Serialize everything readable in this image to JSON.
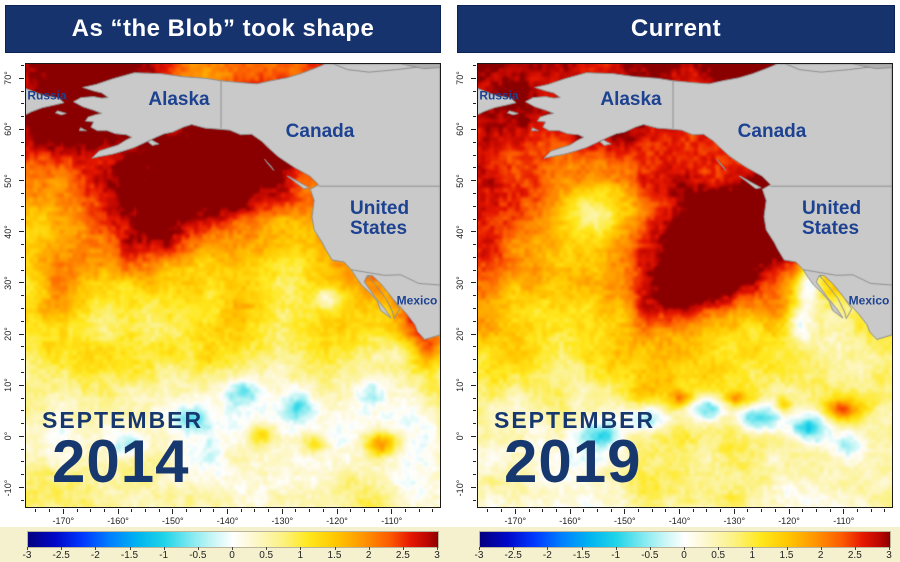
{
  "panels": [
    {
      "title": "As “the Blob” took shape",
      "month": "SEPTEMBER",
      "year": "2014"
    },
    {
      "title": "Current",
      "month": "SEPTEMBER",
      "year": "2019"
    }
  ],
  "region_labels": {
    "russia": "Russia",
    "alaska": "Alaska",
    "canada": "Canada",
    "united_states": "United States",
    "mexico": "Mexico"
  },
  "chart_data": {
    "type": "heatmap",
    "subtype": "geographic-sea-surface-temperature-anomaly",
    "panels": [
      {
        "title": "As “the Blob” took shape",
        "date_label": "SEPTEMBER 2014",
        "description": "Warm anomaly (+2 to +3) across Gulf of Alaska and Bering Sea; warm band along Baja/Mexico coast; near-neutral tropics with small cool eddies"
      },
      {
        "title": "Current",
        "date_label": "SEPTEMBER 2019",
        "description": "Large +2.5 to +3 anomaly blob offshore of US West Coast and across NE Pacific; cool tropical instability waves (-1 to -2) near equator"
      }
    ],
    "region_labels": [
      "Russia",
      "Alaska",
      "Canada",
      "United States",
      "Mexico"
    ],
    "x_axis": {
      "tick_labels": [
        "-170°",
        "-160°",
        "-150°",
        "-140°",
        "-130°",
        "-120°",
        "-110°"
      ],
      "ticks_deg": [
        -170,
        -160,
        -150,
        -140,
        -130,
        -120,
        -110
      ],
      "minor_step_deg": 2.5
    },
    "y_axis": {
      "tick_labels": [
        "70°",
        "60°",
        "50°",
        "40°",
        "30°",
        "20°",
        "10°",
        "0°",
        "-10°"
      ],
      "ticks_deg": [
        70,
        60,
        50,
        40,
        30,
        20,
        10,
        0,
        -10
      ],
      "minor_step_deg": 2.5
    },
    "colorbar": {
      "min": -3,
      "max": 3,
      "tick_labels": [
        "-3",
        "-2.5",
        "-2",
        "-1.5",
        "-1",
        "-0.5",
        "0",
        "0.5",
        "1",
        "1.5",
        "2",
        "2.5",
        "3"
      ],
      "position": "bottom"
    },
    "grid": false
  },
  "map_render": {
    "land_color": "#c9c9c9",
    "land_border": "#8f8f8f",
    "border_color": "#8f8f8f",
    "title_bg": "#16336e",
    "label_color": "#1c4291",
    "date_color": "#17386f",
    "footer_bg": "#f5f1cf",
    "colormap": [
      [
        -3.0,
        "#05007f"
      ],
      [
        -2.6,
        "#0008c8"
      ],
      [
        -2.2,
        "#0038ff"
      ],
      [
        -1.8,
        "#0080ff"
      ],
      [
        -1.4,
        "#00b4f0"
      ],
      [
        -1.0,
        "#20d4e8"
      ],
      [
        -0.6,
        "#84eaf0"
      ],
      [
        -0.3,
        "#c8f6f6"
      ],
      [
        0.0,
        "#ffffff"
      ],
      [
        0.3,
        "#fdf8cf"
      ],
      [
        0.7,
        "#fcf287"
      ],
      [
        1.1,
        "#ffe81e"
      ],
      [
        1.5,
        "#ffc800"
      ],
      [
        1.9,
        "#ff9600"
      ],
      [
        2.3,
        "#fc5a00"
      ],
      [
        2.6,
        "#e61800"
      ],
      [
        2.85,
        "#bc0600"
      ],
      [
        3.0,
        "#8a0000"
      ]
    ],
    "fields": [
      {
        "seed": 20140901,
        "base": [
          [
            0,
            2.75
          ],
          [
            0.08,
            2.55
          ],
          [
            0.18,
            2.15
          ],
          [
            0.3,
            1.95
          ],
          [
            0.42,
            1.6
          ],
          [
            0.52,
            1.25
          ],
          [
            0.62,
            0.95
          ],
          [
            0.72,
            0.7
          ],
          [
            0.82,
            0.5
          ],
          [
            1,
            0.42
          ]
        ],
        "blobs": [
          [
            0.42,
            0.3,
            1.5,
            0.2,
            0.13
          ],
          [
            0.3,
            0.4,
            0.7,
            0.1,
            0.08
          ],
          [
            0.12,
            0.1,
            1.1,
            0.15,
            0.09
          ],
          [
            0.55,
            0.17,
            0.8,
            0.12,
            0.07
          ],
          [
            0.93,
            0.5,
            1.5,
            0.06,
            0.08
          ],
          [
            0.97,
            0.62,
            1.4,
            0.05,
            0.09
          ],
          [
            0.85,
            0.45,
            1.0,
            0.06,
            0.05
          ],
          [
            0.07,
            0.5,
            0.6,
            0.05,
            0.1
          ],
          [
            0.73,
            0.53,
            -1.1,
            0.035,
            0.028
          ],
          [
            0.52,
            0.74,
            -1.0,
            0.05,
            0.032
          ],
          [
            0.4,
            0.8,
            -0.9,
            0.05,
            0.03
          ],
          [
            0.66,
            0.78,
            -0.9,
            0.04,
            0.03
          ],
          [
            0.25,
            0.86,
            -0.8,
            0.05,
            0.03
          ],
          [
            0.84,
            0.74,
            -0.75,
            0.04,
            0.03
          ],
          [
            0.86,
            0.86,
            1.6,
            0.045,
            0.03
          ],
          [
            0.7,
            0.86,
            1.1,
            0.035,
            0.025
          ],
          [
            0.57,
            0.84,
            1.0,
            0.03,
            0.025
          ]
        ]
      },
      {
        "seed": 20190901,
        "base": [
          [
            0,
            2.8
          ],
          [
            0.08,
            2.6
          ],
          [
            0.2,
            2.3
          ],
          [
            0.3,
            2.15
          ],
          [
            0.42,
            1.95
          ],
          [
            0.52,
            1.45
          ],
          [
            0.62,
            1.0
          ],
          [
            0.72,
            0.8
          ],
          [
            0.82,
            0.6
          ],
          [
            1,
            0.5
          ]
        ],
        "blobs": [
          [
            0.6,
            0.42,
            1.9,
            0.19,
            0.13
          ],
          [
            0.7,
            0.32,
            1.3,
            0.11,
            0.08
          ],
          [
            0.5,
            0.52,
            1.0,
            0.12,
            0.07
          ],
          [
            0.25,
            0.14,
            1.0,
            0.15,
            0.08
          ],
          [
            0.92,
            0.4,
            0.9,
            0.05,
            0.05
          ],
          [
            0.3,
            0.33,
            -1.3,
            0.11,
            0.065
          ],
          [
            0.2,
            0.42,
            -0.6,
            0.09,
            0.05
          ],
          [
            0.8,
            0.5,
            -1.7,
            0.03,
            0.055
          ],
          [
            0.78,
            0.59,
            -1.2,
            0.028,
            0.04
          ],
          [
            0.42,
            0.8,
            -1.8,
            0.06,
            0.035
          ],
          [
            0.55,
            0.78,
            -1.9,
            0.05,
            0.03
          ],
          [
            0.67,
            0.8,
            -1.7,
            0.05,
            0.03
          ],
          [
            0.3,
            0.84,
            -1.3,
            0.05,
            0.03
          ],
          [
            0.8,
            0.82,
            -1.6,
            0.05,
            0.035
          ],
          [
            0.9,
            0.86,
            -1.0,
            0.04,
            0.03
          ],
          [
            0.49,
            0.755,
            1.0,
            0.025,
            0.018
          ],
          [
            0.62,
            0.755,
            1.1,
            0.025,
            0.018
          ],
          [
            0.88,
            0.78,
            1.7,
            0.04,
            0.025
          ],
          [
            0.74,
            0.77,
            1.0,
            0.02,
            0.018
          ]
        ]
      }
    ]
  },
  "geo": {
    "lon_range": [
      -177,
      -101
    ],
    "lat_range": [
      73,
      -14
    ],
    "mainland": [
      [
        -101,
        73
      ],
      [
        -101,
        19.8
      ],
      [
        -103.8,
        18.9
      ],
      [
        -105.1,
        20.4
      ],
      [
        -105.6,
        21.8
      ],
      [
        -107.1,
        23.9
      ],
      [
        -108.8,
        25.9
      ],
      [
        -110.5,
        27.8
      ],
      [
        -112.6,
        29.9
      ],
      [
        -114.4,
        31.4
      ],
      [
        -114.9,
        30.2
      ],
      [
        -112.9,
        27.2
      ],
      [
        -111.1,
        24.9
      ],
      [
        -110.0,
        23.1
      ],
      [
        -111.9,
        24.6
      ],
      [
        -112.5,
        26.4
      ],
      [
        -113.9,
        28.1
      ],
      [
        -115.4,
        29.6
      ],
      [
        -116.4,
        31.1
      ],
      [
        -117.3,
        32.6
      ],
      [
        -118.6,
        34.1
      ],
      [
        -120.8,
        34.5
      ],
      [
        -122.0,
        36.6
      ],
      [
        -122.6,
        37.9
      ],
      [
        -124.1,
        40.4
      ],
      [
        -124.5,
        43.0
      ],
      [
        -124.1,
        46.2
      ],
      [
        -124.8,
        48.4
      ],
      [
        -123.3,
        49.3
      ],
      [
        -124.9,
        51.0
      ],
      [
        -127.6,
        52.6
      ],
      [
        -129.2,
        53.7
      ],
      [
        -130.7,
        54.8
      ],
      [
        -132.4,
        56.4
      ],
      [
        -133.7,
        57.8
      ],
      [
        -135.6,
        59.2
      ],
      [
        -137.6,
        59.1
      ],
      [
        -139.6,
        60.0
      ],
      [
        -141.6,
        60.2
      ],
      [
        -144.1,
        60.4
      ],
      [
        -146.6,
        61.1
      ],
      [
        -148.1,
        60.6
      ],
      [
        -150.1,
        59.6
      ],
      [
        -151.6,
        59.3
      ],
      [
        -153.1,
        58.6
      ],
      [
        -155.1,
        57.6
      ],
      [
        -157.1,
        56.6
      ],
      [
        -159.1,
        55.9
      ],
      [
        -161.1,
        55.3
      ],
      [
        -163.1,
        54.9
      ],
      [
        -164.9,
        54.5
      ],
      [
        -163.6,
        55.9
      ],
      [
        -161.6,
        56.6
      ],
      [
        -160.1,
        57.1
      ],
      [
        -158.6,
        58.1
      ],
      [
        -157.6,
        58.6
      ],
      [
        -158.6,
        59.1
      ],
      [
        -160.6,
        59.3
      ],
      [
        -162.1,
        59.9
      ],
      [
        -163.9,
        59.9
      ],
      [
        -165.1,
        60.6
      ],
      [
        -164.6,
        61.6
      ],
      [
        -166.1,
        61.8
      ],
      [
        -165.6,
        62.6
      ],
      [
        -164.1,
        63.1
      ],
      [
        -163.1,
        63.3
      ],
      [
        -164.6,
        63.9
      ],
      [
        -166.6,
        64.6
      ],
      [
        -168.3,
        65.6
      ],
      [
        -166.9,
        66.4
      ],
      [
        -164.6,
        66.6
      ],
      [
        -163.1,
        66.3
      ],
      [
        -161.9,
        66.4
      ],
      [
        -163.1,
        67.3
      ],
      [
        -164.6,
        67.7
      ],
      [
        -166.6,
        68.4
      ],
      [
        -164.1,
        69.0
      ],
      [
        -161.1,
        70.1
      ],
      [
        -157.1,
        71.3
      ],
      [
        -152.1,
        71.1
      ],
      [
        -148.1,
        70.5
      ],
      [
        -144.1,
        70.2
      ],
      [
        -141.1,
        69.7
      ],
      [
        -137.1,
        69.3
      ],
      [
        -134.6,
        69.1
      ],
      [
        -132.1,
        69.7
      ],
      [
        -129.1,
        70.3
      ],
      [
        -126.6,
        71.1
      ],
      [
        -124.1,
        72.1
      ],
      [
        -122.1,
        73.0
      ]
    ],
    "islands": [
      [
        [
          -128.7,
          50.9
        ],
        [
          -126.7,
          49.7
        ],
        [
          -125.0,
          48.7
        ],
        [
          -126.0,
          48.5
        ],
        [
          -127.7,
          49.9
        ],
        [
          -129.1,
          51.0
        ]
      ],
      [
        [
          -133.2,
          54.3
        ],
        [
          -132.0,
          52.9
        ],
        [
          -131.5,
          52.1
        ],
        [
          -132.6,
          53.4
        ]
      ],
      [
        [
          -171.2,
          63.8
        ],
        [
          -169.6,
          63.3
        ],
        [
          -170.5,
          63.0
        ],
        [
          -171.6,
          63.4
        ]
      ],
      [
        [
          -167.0,
          60.5
        ],
        [
          -165.9,
          59.9
        ],
        [
          -167.2,
          59.9
        ]
      ],
      [
        [
          -154.0,
          58.1
        ],
        [
          -152.6,
          57.3
        ],
        [
          -153.8,
          57.0
        ],
        [
          -154.6,
          57.7
        ]
      ]
    ],
    "arctic_islands": [
      [
        -120.5,
        73.0
      ],
      [
        -118.0,
        71.9
      ],
      [
        -114.0,
        71.4
      ],
      [
        -109.0,
        71.9
      ],
      [
        -105.0,
        72.4
      ],
      [
        -103.0,
        73.0
      ]
    ],
    "corner_patch": [
      [
        -108.0,
        73.0
      ],
      [
        -104.0,
        72.1
      ],
      [
        -101.0,
        72.3
      ],
      [
        -101.0,
        73.0
      ]
    ],
    "chukotka": [
      [
        -177.3,
        68.3
      ],
      [
        -174.0,
        66.9
      ],
      [
        -171.0,
        66.3
      ],
      [
        -170.0,
        65.4
      ],
      [
        -171.5,
        65.0
      ],
      [
        -174.0,
        64.4
      ],
      [
        -176.0,
        63.6
      ],
      [
        -177.3,
        62.9
      ]
    ],
    "gulf_of_california": [
      [
        -114.3,
        31.5
      ],
      [
        -112.7,
        29.4
      ],
      [
        -110.9,
        26.9
      ],
      [
        -109.7,
        24.3
      ],
      [
        -109.4,
        23.0
      ],
      [
        -108.4,
        24.9
      ],
      [
        -110.0,
        27.4
      ],
      [
        -111.9,
        29.9
      ],
      [
        -113.4,
        31.4
      ]
    ],
    "borders": [
      [
        [
          -141.2,
          69.7
        ],
        [
          -141.2,
          60.3
        ]
      ],
      [
        [
          -123.3,
          49.0
        ],
        [
          -101.0,
          49.0
        ]
      ],
      [
        [
          -117.3,
          32.6
        ],
        [
          -111.2,
          31.5
        ],
        [
          -108.2,
          31.6
        ],
        [
          -104.9,
          29.9
        ],
        [
          -101.0,
          29.6
        ]
      ]
    ]
  }
}
